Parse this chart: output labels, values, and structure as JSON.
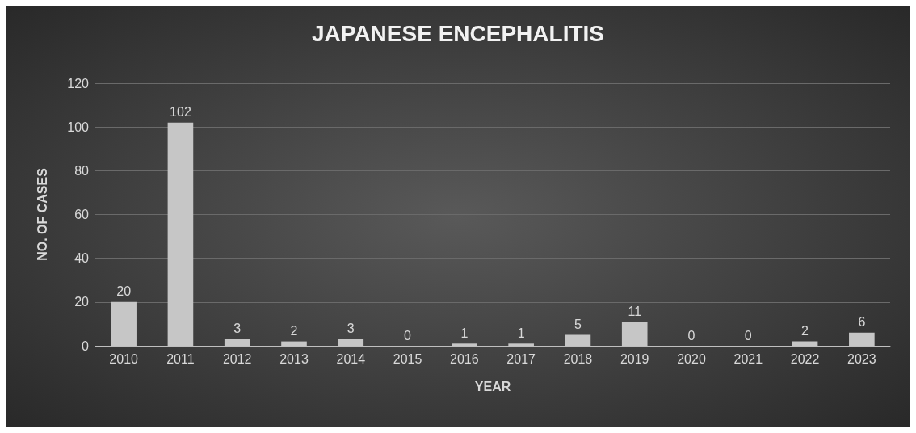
{
  "chart_data": {
    "type": "bar",
    "title": "JAPANESE ENCEPHALITIS",
    "xlabel": "YEAR",
    "ylabel": "NO. OF CASES",
    "categories": [
      "2010",
      "2011",
      "2012",
      "2013",
      "2014",
      "2015",
      "2016",
      "2017",
      "2018",
      "2019",
      "2020",
      "2021",
      "2022",
      "2023"
    ],
    "values": [
      20,
      102,
      3,
      2,
      3,
      0,
      1,
      1,
      5,
      11,
      0,
      0,
      2,
      6
    ],
    "color": "#c6c6c6",
    "ylim": [
      0,
      120
    ],
    "yticks": [
      0,
      20,
      40,
      60,
      80,
      100,
      120
    ],
    "grid": "y",
    "data_labels": true
  }
}
